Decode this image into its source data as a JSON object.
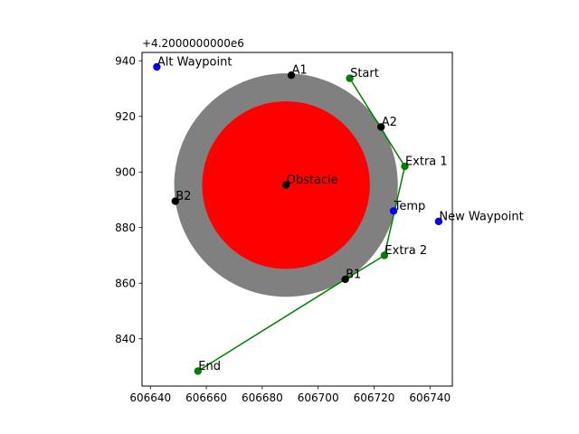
{
  "chart_data": {
    "type": "scatter",
    "title": "",
    "xlabel": "",
    "ylabel": "",
    "y_offset_label": "+4.2000000000e6",
    "xlim": [
      606637,
      606748
    ],
    "ylim": [
      823,
      943
    ],
    "x_ticks": [
      606640,
      606660,
      606680,
      606700,
      606720,
      606740
    ],
    "y_ticks": [
      840,
      860,
      880,
      900,
      920,
      940
    ],
    "grid": false,
    "legend": "none",
    "colors": {
      "outer_circle": "#808080",
      "inner_circle": "#ff0000",
      "path": "#008000",
      "green_points": "#008000",
      "black_points": "#000000",
      "blue_points": "#0000ff"
    },
    "circles": [
      {
        "center": [
          606688.5,
          895.3
        ],
        "radius": 40,
        "color": "#808080"
      },
      {
        "center": [
          606688.5,
          895.3
        ],
        "radius": 30,
        "color": "#ff0000"
      }
    ],
    "path_points": [
      [
        606711.3,
        933.7
      ],
      [
        606731.0,
        902.0
      ],
      [
        606723.7,
        870.0
      ],
      [
        606709.7,
        861.4
      ],
      [
        606657.0,
        828.4
      ]
    ],
    "points": [
      {
        "label": "Alt Waypoint",
        "x": 606642.3,
        "y": 937.8,
        "color": "#0000ff"
      },
      {
        "label": "A1",
        "x": 606690.4,
        "y": 934.8,
        "color": "#000000"
      },
      {
        "label": "Start",
        "x": 606711.3,
        "y": 933.7,
        "color": "#008000"
      },
      {
        "label": "A2",
        "x": 606722.5,
        "y": 916.2,
        "color": "#000000"
      },
      {
        "label": "Extra 1",
        "x": 606731.0,
        "y": 902.0,
        "color": "#008000"
      },
      {
        "label": "Obstacle",
        "x": 606688.5,
        "y": 895.3,
        "color": "#000000"
      },
      {
        "label": "B2",
        "x": 606648.9,
        "y": 889.5,
        "color": "#000000"
      },
      {
        "label": "Temp",
        "x": 606727.0,
        "y": 886.0,
        "color": "#0000ff"
      },
      {
        "label": "New Waypoint",
        "x": 606743.1,
        "y": 882.2,
        "color": "#0000ff"
      },
      {
        "label": "Extra 2",
        "x": 606723.7,
        "y": 870.0,
        "color": "#008000"
      },
      {
        "label": "B1",
        "x": 606709.7,
        "y": 861.4,
        "color": "#000000"
      },
      {
        "label": "End",
        "x": 606657.0,
        "y": 828.4,
        "color": "#008000"
      }
    ]
  }
}
